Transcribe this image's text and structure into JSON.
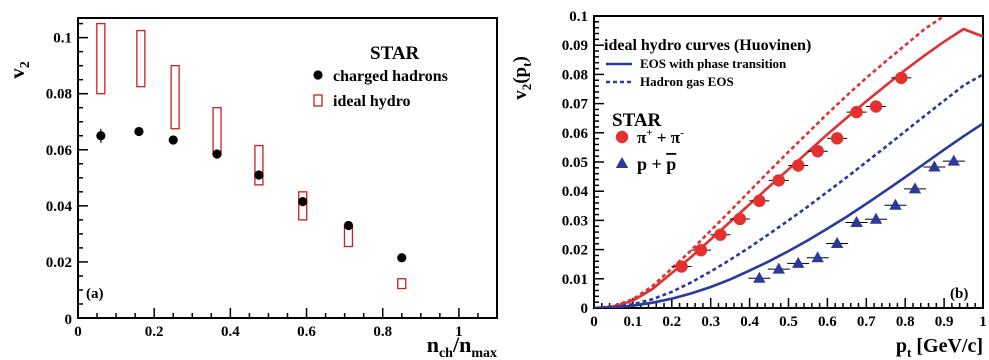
{
  "chart_data": [
    {
      "type": "scatter",
      "panel_label": "(a)",
      "xlabel": {
        "main": "n",
        "sub1": "ch",
        "slash": "/n",
        "sub2": "max"
      },
      "ylabel": {
        "main": "v",
        "sub": "2"
      },
      "xlim": [
        0,
        1.1
      ],
      "ylim": [
        0,
        0.107
      ],
      "x_ticks": [
        "0",
        "0.2",
        "0.4",
        "0.6",
        "0.8",
        "1"
      ],
      "y_ticks": [
        "0.02",
        "0.04",
        "0.06",
        "0.08",
        "0.1"
      ],
      "y_zero_label": "0",
      "legend_title": "STAR",
      "legend_placement": "top-right",
      "series": [
        {
          "name": "charged hadrons",
          "color": "#000000",
          "marker": "circle",
          "points": [
            {
              "x": 0.06,
              "y": 0.065,
              "err": 0.0025
            },
            {
              "x": 0.16,
              "y": 0.0665,
              "err": 0.0008
            },
            {
              "x": 0.25,
              "y": 0.0635,
              "err": 0.0008
            },
            {
              "x": 0.365,
              "y": 0.0585,
              "err": 0.0008
            },
            {
              "x": 0.475,
              "y": 0.051,
              "err": 0.0008
            },
            {
              "x": 0.59,
              "y": 0.0415,
              "err": 0.0008
            },
            {
              "x": 0.71,
              "y": 0.033,
              "err": 0.0008
            },
            {
              "x": 0.85,
              "y": 0.0215,
              "err": 0.0008
            }
          ]
        },
        {
          "name": "ideal hydro",
          "color": "#cc1f1f",
          "marker": "open-box",
          "boxes": [
            {
              "x": 0.06,
              "low": 0.08,
              "high": 0.105
            },
            {
              "x": 0.165,
              "low": 0.0825,
              "high": 0.1025
            },
            {
              "x": 0.255,
              "low": 0.0675,
              "high": 0.09
            },
            {
              "x": 0.365,
              "low": 0.0585,
              "high": 0.075
            },
            {
              "x": 0.475,
              "low": 0.0475,
              "high": 0.0615
            },
            {
              "x": 0.59,
              "low": 0.035,
              "high": 0.045
            },
            {
              "x": 0.71,
              "low": 0.0255,
              "high": 0.033
            },
            {
              "x": 0.85,
              "low": 0.0105,
              "high": 0.014
            }
          ]
        }
      ]
    },
    {
      "type": "scatter",
      "panel_label": "(b)",
      "xlabel": {
        "main": "p",
        "sub": "t",
        "unit": " [GeV/c]"
      },
      "ylabel": {
        "main": "v",
        "sub1": "2",
        "paren_open": "(p",
        "sub2": "t",
        "paren_close": ")"
      },
      "xlim": [
        0,
        1
      ],
      "ylim": [
        0,
        0.1
      ],
      "x_ticks": [
        "0",
        "0.1",
        "0.2",
        "0.3",
        "0.4",
        "0.5",
        "0.6",
        "0.7",
        "0.8",
        "0.9",
        "1"
      ],
      "y_ticks": [
        "0",
        "0.01",
        "0.02",
        "0.03",
        "0.04",
        "0.05",
        "0.06",
        "0.07",
        "0.08",
        "0.09",
        "0.1"
      ],
      "legend_title": "ideal hydro curves (Huovinen)",
      "legend_placement": "top-left",
      "curves": [
        {
          "name": "EOS with phase transition",
          "particle": "pion",
          "color": "#e03030",
          "style": "solid",
          "x": [
            0,
            0.05,
            0.1,
            0.15,
            0.2,
            0.25,
            0.3,
            0.35,
            0.4,
            0.45,
            0.5,
            0.55,
            0.6,
            0.65,
            0.7,
            0.75,
            0.8,
            0.85,
            0.9,
            0.95,
            1.0
          ],
          "y": [
            0,
            0.0005,
            0.0025,
            0.0065,
            0.012,
            0.0175,
            0.0235,
            0.0295,
            0.0355,
            0.0415,
            0.0475,
            0.0535,
            0.0595,
            0.0652,
            0.0708,
            0.0762,
            0.0815,
            0.0865,
            0.0912,
            0.0955,
            0.093
          ]
        },
        {
          "name": "Hadron gas EOS",
          "particle": "pion",
          "color": "#e03030",
          "style": "dotted",
          "x": [
            0,
            0.05,
            0.1,
            0.15,
            0.2,
            0.25,
            0.3,
            0.35,
            0.4,
            0.45,
            0.5,
            0.55,
            0.6,
            0.65,
            0.7,
            0.75,
            0.8,
            0.85,
            0.9
          ],
          "y": [
            0,
            0.0006,
            0.003,
            0.0075,
            0.0135,
            0.0198,
            0.0265,
            0.0332,
            0.04,
            0.0468,
            0.0535,
            0.06,
            0.0665,
            0.0728,
            0.0788,
            0.0845,
            0.09,
            0.0955,
            0.1
          ]
        },
        {
          "name": "EOS with phase transition",
          "particle": "proton",
          "color": "#2a3a9a",
          "style": "solid",
          "x": [
            0,
            0.05,
            0.1,
            0.15,
            0.2,
            0.25,
            0.3,
            0.35,
            0.4,
            0.45,
            0.5,
            0.55,
            0.6,
            0.65,
            0.7,
            0.75,
            0.8,
            0.85,
            0.9,
            0.95,
            1.0
          ],
          "y": [
            0,
            0.0002,
            0.0008,
            0.0018,
            0.0032,
            0.005,
            0.0072,
            0.0098,
            0.0128,
            0.016,
            0.0195,
            0.0232,
            0.0272,
            0.0313,
            0.0357,
            0.0402,
            0.0448,
            0.0495,
            0.0542,
            0.0588,
            0.0632
          ]
        },
        {
          "name": "Hadron gas EOS",
          "particle": "proton",
          "color": "#2a3a9a",
          "style": "dotted",
          "x": [
            0,
            0.05,
            0.1,
            0.15,
            0.2,
            0.25,
            0.3,
            0.35,
            0.4,
            0.45,
            0.5,
            0.55,
            0.6,
            0.65,
            0.7,
            0.75,
            0.8,
            0.85,
            0.9,
            0.95,
            1.0
          ],
          "y": [
            0,
            0.0003,
            0.0013,
            0.003,
            0.0055,
            0.0088,
            0.0125,
            0.0165,
            0.0208,
            0.0253,
            0.03,
            0.0348,
            0.0398,
            0.0448,
            0.05,
            0.0552,
            0.0605,
            0.0658,
            0.071,
            0.0762,
            0.08
          ]
        }
      ],
      "legend_lines": [
        {
          "label": "EOS with phase transition",
          "color": "#2a3a9a",
          "style": "solid"
        },
        {
          "label": "Hadron gas EOS",
          "color": "#2a3a9a",
          "style": "dotted"
        }
      ],
      "star_label": "STAR",
      "series": [
        {
          "name": "π⁺ + π⁻",
          "label_parts": {
            "base": "π",
            "sup1": "+",
            "mid": " + π",
            "sup2": "-"
          },
          "color": "#e53030",
          "marker": "circle",
          "points": [
            {
              "x": 0.225,
              "y": 0.0142
            },
            {
              "x": 0.275,
              "y": 0.0198
            },
            {
              "x": 0.325,
              "y": 0.0251
            },
            {
              "x": 0.375,
              "y": 0.0305
            },
            {
              "x": 0.425,
              "y": 0.0367
            },
            {
              "x": 0.475,
              "y": 0.0437
            },
            {
              "x": 0.525,
              "y": 0.0488
            },
            {
              "x": 0.575,
              "y": 0.0537
            },
            {
              "x": 0.625,
              "y": 0.0581
            },
            {
              "x": 0.675,
              "y": 0.0671
            },
            {
              "x": 0.725,
              "y": 0.069
            },
            {
              "x": 0.79,
              "y": 0.0788
            }
          ]
        },
        {
          "name": "p + p̄",
          "label_parts": {
            "base": "p + ",
            "bar": "p"
          },
          "color": "#2a3a9a",
          "marker": "triangle",
          "points": [
            {
              "x": 0.425,
              "y": 0.0102
            },
            {
              "x": 0.475,
              "y": 0.0133
            },
            {
              "x": 0.525,
              "y": 0.0153
            },
            {
              "x": 0.575,
              "y": 0.0172
            },
            {
              "x": 0.625,
              "y": 0.0221
            },
            {
              "x": 0.675,
              "y": 0.0293
            },
            {
              "x": 0.725,
              "y": 0.0304
            },
            {
              "x": 0.775,
              "y": 0.0352
            },
            {
              "x": 0.825,
              "y": 0.0408
            },
            {
              "x": 0.875,
              "y": 0.0483
            },
            {
              "x": 0.925,
              "y": 0.0503
            }
          ]
        }
      ]
    }
  ]
}
